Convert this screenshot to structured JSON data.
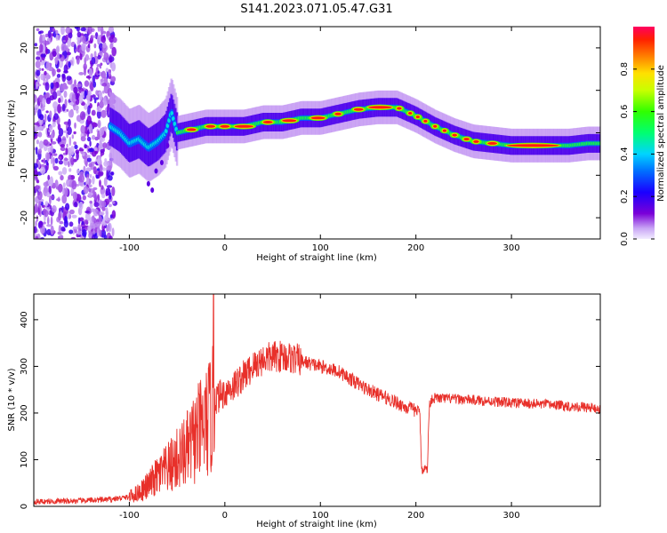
{
  "title": "S141.2023.071.05.47.G31",
  "chart_data": [
    {
      "type": "heatmap",
      "xlabel": "Height of straight line (km)",
      "ylabel": "Frequency (Hz)",
      "xlim": [
        -200,
        393
      ],
      "ylim": [
        -25,
        25
      ],
      "xticks": [
        "-100",
        "0",
        "100",
        "200",
        "300"
      ],
      "yticks": [
        "20",
        "10",
        "0",
        "-10",
        "-20"
      ],
      "colorbar": {
        "label": "Normalized spectral amplitude",
        "ticks": [
          "0.0",
          "0.2",
          "0.4",
          "0.6",
          "0.8"
        ],
        "range": [
          0,
          1
        ]
      },
      "ridge": {
        "description_x": [
          -120,
          -110,
          -100,
          -90,
          -80,
          -70,
          -62,
          -56,
          -50,
          -40,
          -30,
          -20,
          0,
          20,
          40,
          60,
          80,
          100,
          120,
          140,
          160,
          180,
          200,
          220,
          240,
          260,
          280,
          300,
          320,
          340,
          360,
          380,
          393
        ],
        "frequency_hz": [
          1.5,
          0,
          -2.5,
          -1.5,
          -3.5,
          -2,
          0,
          5,
          0,
          0.5,
          1,
          1.5,
          1.5,
          1.5,
          2.5,
          2.5,
          3.5,
          3.5,
          4.5,
          5.5,
          6,
          6,
          4,
          1.5,
          -0.5,
          -2,
          -2.5,
          -3,
          -3,
          -3,
          -3,
          -2.5,
          -2.5
        ]
      }
    },
    {
      "type": "line",
      "xlabel": "Height of straight line (km)",
      "ylabel": "SNR (10 * v/v)",
      "xlim": [
        -200,
        393
      ],
      "ylim": [
        0,
        455
      ],
      "xticks": [
        "-100",
        "0",
        "100",
        "200",
        "300"
      ],
      "yticks": [
        "400",
        "300",
        "200",
        "100",
        "0"
      ],
      "color": "#e8302a",
      "series": [
        {
          "x": [
            -200,
            -150,
            -120,
            -100,
            -90,
            -80,
            -70,
            -60,
            -50,
            -40,
            -30,
            -20,
            -13,
            -10,
            0,
            10,
            20,
            30,
            40,
            50,
            60,
            70,
            80,
            90,
            100,
            110,
            120,
            130,
            140,
            150,
            160,
            170,
            180,
            190,
            200,
            204,
            206,
            208,
            212,
            214,
            216,
            220,
            240,
            260,
            280,
            300,
            320,
            340,
            360,
            380,
            393
          ],
          "y": [
            10,
            12,
            15,
            20,
            30,
            45,
            65,
            80,
            100,
            120,
            150,
            175,
            200,
            230,
            245,
            260,
            280,
            300,
            315,
            320,
            322,
            318,
            312,
            305,
            300,
            295,
            288,
            275,
            262,
            250,
            240,
            232,
            222,
            212,
            205,
            205,
            80,
            80,
            80,
            215,
            230,
            232,
            230,
            228,
            225,
            222,
            220,
            218,
            215,
            212,
            208
          ]
        }
      ]
    }
  ]
}
